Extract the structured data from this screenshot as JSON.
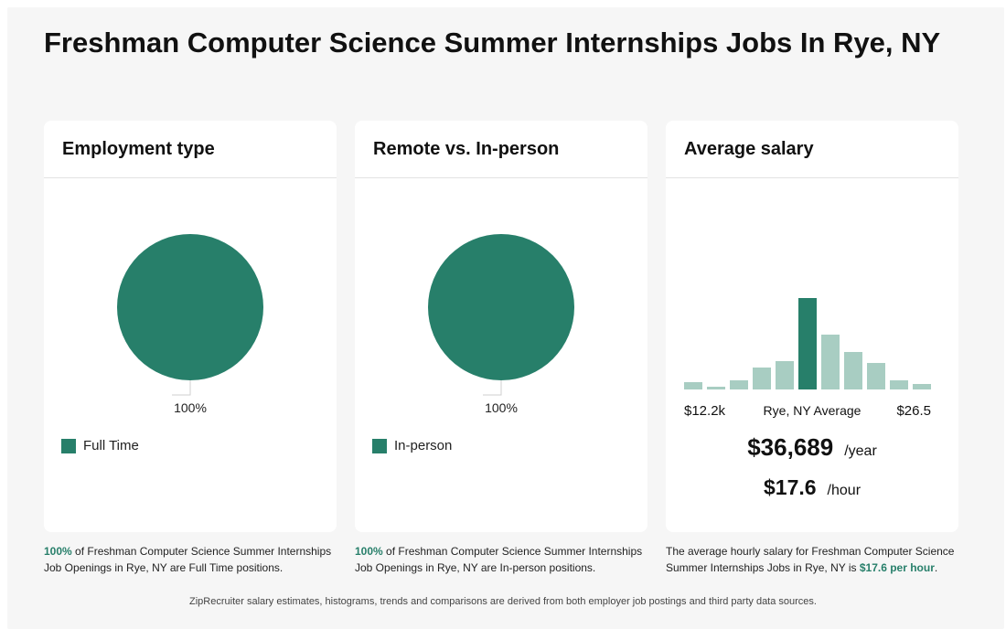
{
  "title": "Freshman Computer Science Summer Internships Jobs In Rye, NY",
  "colors": {
    "primary": "#277f6a",
    "light": "#a8cdc2"
  },
  "cards": {
    "employment": {
      "title": "Employment type",
      "legend": "Full Time"
    },
    "remote": {
      "title": "Remote vs. In-person",
      "legend": "In-person"
    },
    "salary": {
      "title": "Average salary",
      "yearly": "$36,689",
      "yearly_unit": "/year",
      "hourly": "$17.6",
      "hourly_unit": "/hour"
    }
  },
  "chart_data": [
    {
      "type": "pie",
      "title": "Employment type",
      "slices": [
        {
          "label": "Full Time",
          "value": 100,
          "display": "100%"
        }
      ]
    },
    {
      "type": "pie",
      "title": "Remote vs. In-person",
      "slices": [
        {
          "label": "In-person",
          "value": 100,
          "display": "100%"
        }
      ]
    },
    {
      "type": "bar",
      "title": "Average salary",
      "values": [
        8,
        3,
        10,
        24,
        31,
        100,
        60,
        41,
        29,
        10,
        6
      ],
      "highlight_index": 5,
      "x_min_label": "$12.2k",
      "x_max_label": "$26.5",
      "x_mid_label": "Rye, NY Average"
    }
  ],
  "captions": {
    "employment": {
      "highlight": "100%",
      "text": " of Freshman Computer Science Summer Internships Job Openings in Rye, NY are Full Time positions."
    },
    "remote": {
      "highlight": "100%",
      "text": " of Freshman Computer Science Summer Internships Job Openings in Rye, NY are In-person positions."
    },
    "salary": {
      "text": "The average hourly salary for Freshman Computer Science Summer Internships Jobs in Rye, NY is ",
      "highlight": "$17.6 per hour",
      "end": "."
    }
  },
  "footer": "ZipRecruiter salary estimates, histograms, trends and comparisons are derived from both employer job postings and third party data sources."
}
